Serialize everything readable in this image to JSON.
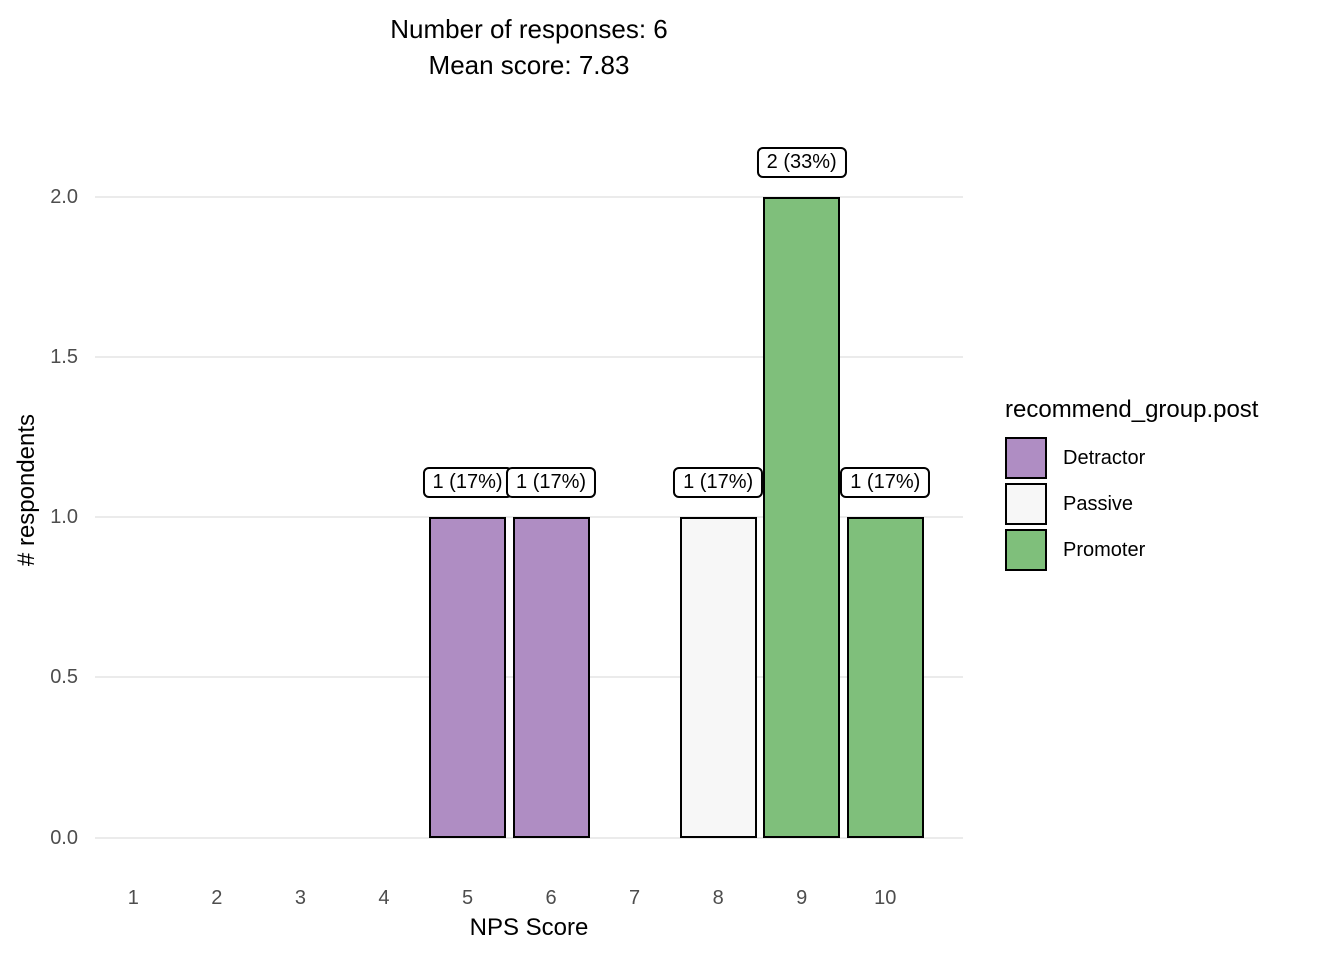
{
  "title": {
    "line1": "Number of responses: 6",
    "line2": "Mean score: 7.83"
  },
  "axes": {
    "x": {
      "label": "NPS Score"
    },
    "y": {
      "label": "# respondents"
    }
  },
  "legend": {
    "title": "recommend_group.post",
    "items": [
      {
        "label": "Detractor",
        "color": "#af8dc3"
      },
      {
        "label": "Passive",
        "color": "#f7f7f7"
      },
      {
        "label": "Promoter",
        "color": "#7fbf7b"
      }
    ]
  },
  "chart_data": {
    "type": "bar",
    "title": "Number of responses: 6\nMean score: 7.83",
    "xlabel": "NPS Score",
    "ylabel": "# respondents",
    "categories": [
      "1",
      "2",
      "3",
      "4",
      "5",
      "6",
      "7",
      "8",
      "9",
      "10"
    ],
    "values": [
      0,
      0,
      0,
      0,
      1,
      1,
      0,
      1,
      2,
      1
    ],
    "groups": [
      "",
      "",
      "",
      "",
      "Detractor",
      "Detractor",
      "",
      "Passive",
      "Promoter",
      "Promoter"
    ],
    "bar_labels": [
      "",
      "",
      "",
      "",
      "1 (17%)",
      "1 (17%)",
      "",
      "1 (17%)",
      "2 (33%)",
      "1 (17%)"
    ],
    "group_colors": {
      "Detractor": "#af8dc3",
      "Passive": "#f7f7f7",
      "Promoter": "#7fbf7b"
    },
    "yticks": [
      0,
      0.5,
      1,
      1.5,
      2
    ],
    "ytick_labels": [
      "0.0",
      "0.5",
      "1.0",
      "1.5",
      "2.0"
    ],
    "ylim": [
      0,
      2.17
    ],
    "grid": "horizontal-major-only",
    "grid_color": "#ebebeb",
    "bar_border_color": "#000000",
    "tick_label_color": "#4d4d4d",
    "background": "#ffffff",
    "legend_position": "right",
    "legend_title": "recommend_group.post"
  }
}
